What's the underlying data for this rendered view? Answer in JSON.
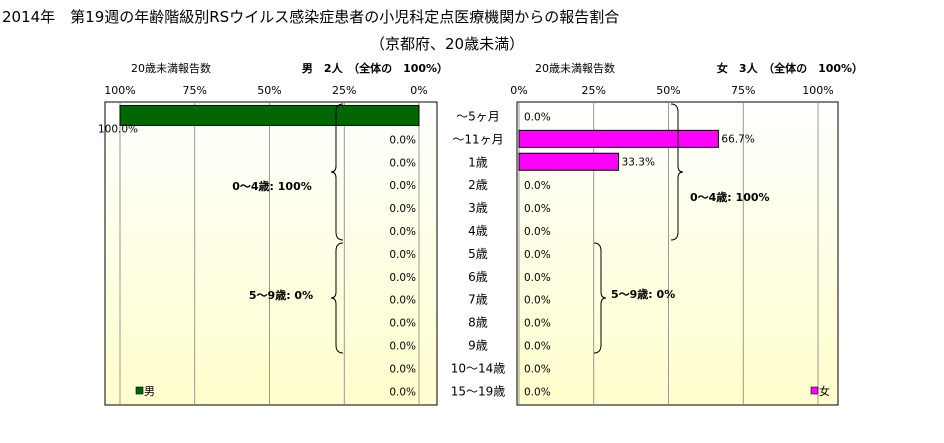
{
  "title_line1": "2014年　第19週の年齢階級別RSウイルス感染症患者の小児科定点医療機関からの報告割合",
  "title_line2": "（京都府、20歳未満）",
  "age_groups": [
    "～5ヶ月",
    "～11ヶ月",
    "1歳",
    "2歳",
    "3歳",
    "4歳",
    "5歳",
    "6歳",
    "7歳",
    "8歳",
    "9歳",
    "10～14歳",
    "15～19歳"
  ],
  "colors": {
    "male": "#006600",
    "female": "#ff00ff",
    "plot_bg_top": "#ffffff",
    "plot_bg_bottom": "#ffffcc"
  },
  "chart_data": [
    {
      "type": "bar",
      "orientation": "horizontal-reversed",
      "panel_label": "20歳未満報告数",
      "header": "男　2人　（全体の　100%）",
      "xlim": [
        0,
        100
      ],
      "tick_labels": [
        "100%",
        "75%",
        "50%",
        "25%",
        "0%"
      ],
      "categories": [
        "～5ヶ月",
        "～11ヶ月",
        "1歳",
        "2歳",
        "3歳",
        "4歳",
        "5歳",
        "6歳",
        "7歳",
        "8歳",
        "9歳",
        "10～14歳",
        "15～19歳"
      ],
      "series": [
        {
          "name": "男",
          "color": "#006600",
          "values": [
            100.0,
            0,
            0,
            0,
            0,
            0,
            0,
            0,
            0,
            0,
            0,
            0,
            0
          ],
          "labels": [
            "100.0%",
            "0.0%",
            "0.0%",
            "0.0%",
            "0.0%",
            "0.0%",
            "0.0%",
            "0.0%",
            "0.0%",
            "0.0%",
            "0.0%",
            "0.0%",
            "0.0%"
          ]
        }
      ],
      "annotations": [
        "0～4歳: 100%",
        "5～9歳: 0%"
      ],
      "legend": "bottom-left",
      "grid": true
    },
    {
      "type": "bar",
      "orientation": "horizontal",
      "panel_label": "20歳未満報告数",
      "header": "女　3人　（全体の　100%）",
      "xlim": [
        0,
        100
      ],
      "tick_labels": [
        "0%",
        "25%",
        "50%",
        "75%",
        "100%"
      ],
      "categories": [
        "～5ヶ月",
        "～11ヶ月",
        "1歳",
        "2歳",
        "3歳",
        "4歳",
        "5歳",
        "6歳",
        "7歳",
        "8歳",
        "9歳",
        "10～14歳",
        "15～19歳"
      ],
      "series": [
        {
          "name": "女",
          "color": "#ff00ff",
          "values": [
            0,
            66.7,
            33.3,
            0,
            0,
            0,
            0,
            0,
            0,
            0,
            0,
            0,
            0
          ],
          "labels": [
            "0.0%",
            "66.7%",
            "33.3%",
            "0.0%",
            "0.0%",
            "0.0%",
            "0.0%",
            "0.0%",
            "0.0%",
            "0.0%",
            "0.0%",
            "0.0%",
            "0.0%"
          ]
        }
      ],
      "annotations": [
        "0～4歳: 100%",
        "5～9歳: 0%"
      ],
      "legend": "bottom-right",
      "grid": true
    }
  ]
}
